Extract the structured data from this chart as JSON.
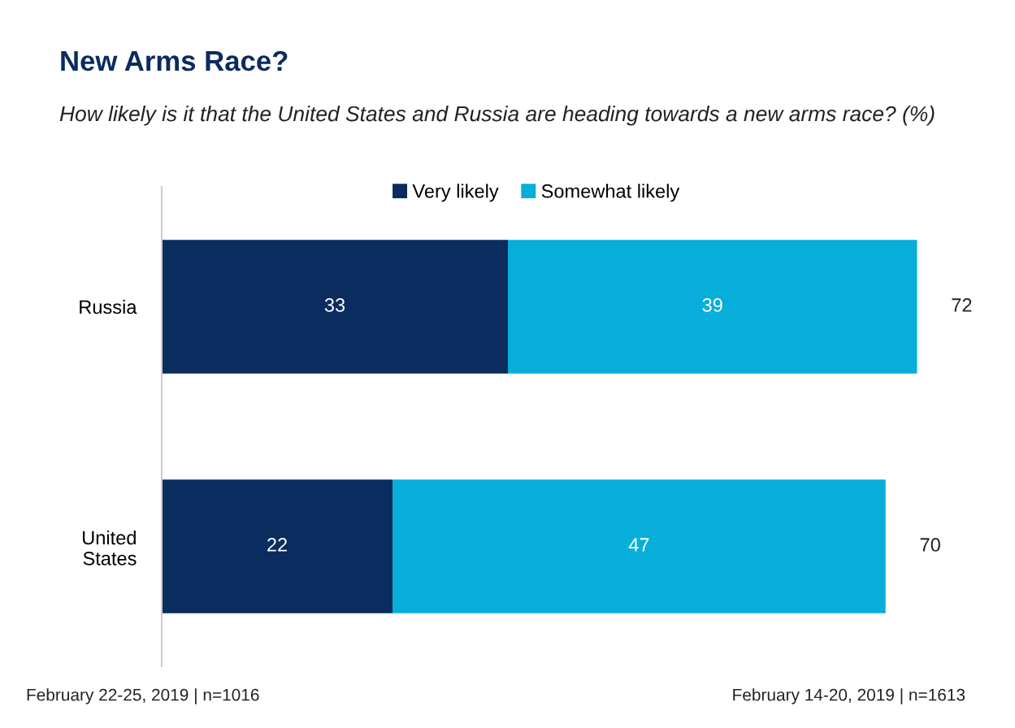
{
  "chart_data": {
    "type": "bar",
    "orientation": "horizontal",
    "stacked": true,
    "title": "New Arms Race?",
    "subtitle": "How likely is it that the United States and Russia are heading towards a new arms race? (%)",
    "categories": [
      "Russia",
      "United States"
    ],
    "series": [
      {
        "name": "Very likely",
        "color": "#0a2c5e",
        "values": [
          33,
          22
        ]
      },
      {
        "name": "Somewhat likely",
        "color": "#07aed9",
        "values": [
          39,
          47
        ]
      }
    ],
    "data_labels": true,
    "totals": [
      "72",
      "70"
    ],
    "legend": "top",
    "grid": false,
    "annotations": [
      "February 22-25, 2019 | n=1016",
      "February 14-20, 2019 | n=1613"
    ]
  }
}
